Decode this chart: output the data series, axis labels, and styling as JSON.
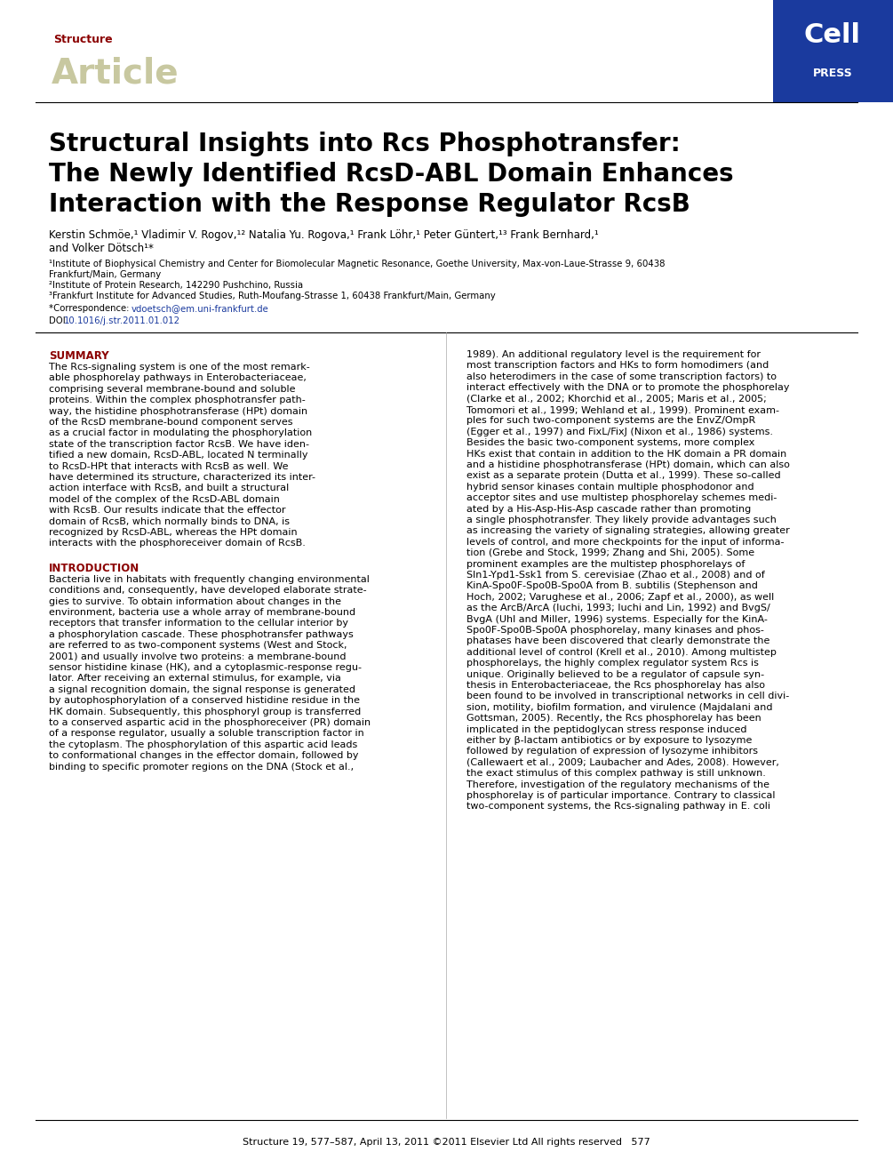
{
  "bg_color": "#ffffff",
  "header_bar_color": "#1a3a9e",
  "structure_label": "Structure",
  "structure_color": "#8b0000",
  "article_label": "Article",
  "article_color": "#c8c8a0",
  "cell_text": "Cell",
  "press_text": "PRESS",
  "cell_press_color": "#ffffff",
  "title_line1": "Structural Insights into Rcs Phosphotransfer:",
  "title_line2": "The Newly Identified RcsD-ABL Domain Enhances",
  "title_line3": "Interaction with the Response Regulator RcsB",
  "title_color": "#000000",
  "authors_line1": "Kerstin Schmöe,¹ Vladimir V. Rogov,¹² Natalia Yu. Rogova,¹ Frank Löhr,¹ Peter Güntert,¹³ Frank Bernhard,¹",
  "authors_line2": "and Volker Dötsch¹*",
  "affil1": "¹Institute of Biophysical Chemistry and Center for Biomolecular Magnetic Resonance, Goethe University, Max-von-Laue-Strasse 9, 60438",
  "affil1b": "Frankfurt/Main, Germany",
  "affil2": "²Institute of Protein Research, 142290 Pushchino, Russia",
  "affil3": "³Frankfurt Institute for Advanced Studies, Ruth-Moufang-Strasse 1, 60438 Frankfurt/Main, Germany",
  "corr_prefix": "*Correspondence: ",
  "corr_email": "vdoetsch@em.uni-frankfurt.de",
  "corr_email_color": "#1a3a9e",
  "doi_prefix": "DOI ",
  "doi_link": "10.1016/j.str.2011.01.012",
  "doi_color": "#1a3a9e",
  "summary_title": "SUMMARY",
  "summary_color": "#8b0000",
  "intro_title": "INTRODUCTION",
  "intro_color": "#8b0000",
  "footer_text": "Structure 19, 577–587, April 13, 2011 ©2011 Elsevier Ltd All rights reserved   577",
  "link_color": "#1a3a9e",
  "separator_color": "#000000",
  "summary_lines": [
    "The Rcs-signaling system is one of the most remark-",
    "able phosphorelay pathways in Enterobacteriaceae,",
    "comprising several membrane-bound and soluble",
    "proteins. Within the complex phosphotransfer path-",
    "way, the histidine phosphotransferase (HPt) domain",
    "of the RcsD membrane-bound component serves",
    "as a crucial factor in modulating the phosphorylation",
    "state of the transcription factor RcsB. We have iden-",
    "tified a new domain, RcsD-ABL, located N terminally",
    "to RcsD-HPt that interacts with RcsB as well. We",
    "have determined its structure, characterized its inter-",
    "action interface with RcsB, and built a structural",
    "model of the complex of the RcsD-ABL domain",
    "with RcsB. Our results indicate that the effector",
    "domain of RcsB, which normally binds to DNA, is",
    "recognized by RcsD-ABL, whereas the HPt domain",
    "interacts with the phosphoreceiver domain of RcsB."
  ],
  "intro_lines_left": [
    "Bacteria live in habitats with frequently changing environmental",
    "conditions and, consequently, have developed elaborate strate-",
    "gies to survive. To obtain information about changes in the",
    "environment, bacteria use a whole array of membrane-bound",
    "receptors that transfer information to the cellular interior by",
    "a phosphorylation cascade. These phosphotransfer pathways",
    "are referred to as two-component systems (West and Stock,",
    "2001) and usually involve two proteins: a membrane-bound",
    "sensor histidine kinase (HK), and a cytoplasmic-response regu-",
    "lator. After receiving an external stimulus, for example, via",
    "a signal recognition domain, the signal response is generated",
    "by autophosphorylation of a conserved histidine residue in the",
    "HK domain. Subsequently, this phosphoryl group is transferred",
    "to a conserved aspartic acid in the phosphoreceiver (PR) domain",
    "of a response regulator, usually a soluble transcription factor in",
    "the cytoplasm. The phosphorylation of this aspartic acid leads",
    "to conformational changes in the effector domain, followed by",
    "binding to specific promoter regions on the DNA (Stock et al.,"
  ],
  "right_lines": [
    "1989). An additional regulatory level is the requirement for",
    "most transcription factors and HKs to form homodimers (and",
    "also heterodimers in the case of some transcription factors) to",
    "interact effectively with the DNA or to promote the phosphorelay",
    "(Clarke et al., 2002; Khorchid et al., 2005; Maris et al., 2005;",
    "Tomomori et al., 1999; Wehland et al., 1999). Prominent exam-",
    "ples for such two-component systems are the EnvZ/OmpR",
    "(Egger et al., 1997) and FixL/FixJ (Nixon et al., 1986) systems.",
    "Besides the basic two-component systems, more complex",
    "HKs exist that contain in addition to the HK domain a PR domain",
    "and a histidine phosphotransferase (HPt) domain, which can also",
    "exist as a separate protein (Dutta et al., 1999). These so-called",
    "hybrid sensor kinases contain multiple phosphodonor and",
    "acceptor sites and use multistep phosphorelay schemes medi-",
    "ated by a His-Asp-His-Asp cascade rather than promoting",
    "a single phosphotransfer. They likely provide advantages such",
    "as increasing the variety of signaling strategies, allowing greater",
    "levels of control, and more checkpoints for the input of informa-",
    "tion (Grebe and Stock, 1999; Zhang and Shi, 2005). Some",
    "prominent examples are the multistep phosphorelays of",
    "Sln1-Ypd1-Ssk1 from S. cerevisiae (Zhao et al., 2008) and of",
    "KinA-Spo0F-Spo0B-Spo0A from B. subtilis (Stephenson and",
    "Hoch, 2002; Varughese et al., 2006; Zapf et al., 2000), as well",
    "as the ArcB/ArcA (Iuchi, 1993; Iuchi and Lin, 1992) and BvgS/",
    "BvgA (Uhl and Miller, 1996) systems. Especially for the KinA-",
    "Spo0F-Spo0B-Spo0A phosphorelay, many kinases and phos-",
    "phatases have been discovered that clearly demonstrate the",
    "additional level of control (Krell et al., 2010). Among multistep",
    "phosphorelays, the highly complex regulator system Rcs is",
    "unique. Originally believed to be a regulator of capsule syn-",
    "thesis in Enterobacteriaceae, the Rcs phosphorelay has also",
    "been found to be involved in transcriptional networks in cell divi-",
    "sion, motility, biofilm formation, and virulence (Majdalani and",
    "Gottsman, 2005). Recently, the Rcs phosphorelay has been",
    "implicated in the peptidoglycan stress response induced",
    "either by β-lactam antibiotics or by exposure to lysozyme",
    "followed by regulation of expression of lysozyme inhibitors",
    "(Callewaert et al., 2009; Laubacher and Ades, 2008). However,",
    "the exact stimulus of this complex pathway is still unknown.",
    "Therefore, investigation of the regulatory mechanisms of the",
    "phosphorelay is of particular importance. Contrary to classical",
    "two-component systems, the Rcs-signaling pathway in E. coli"
  ]
}
